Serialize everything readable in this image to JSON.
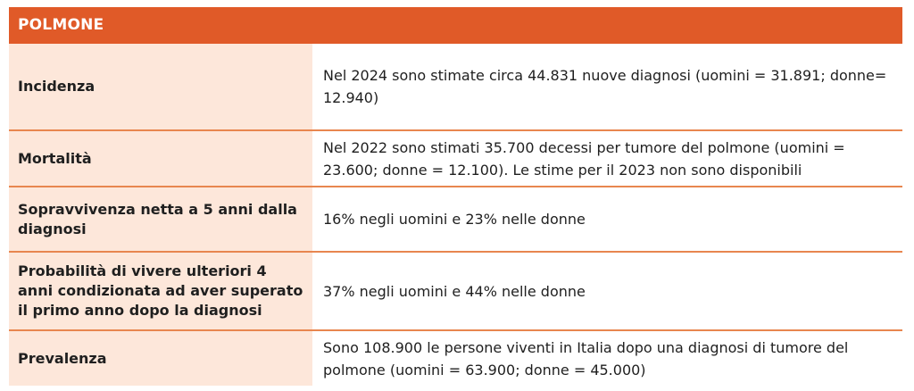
{
  "table": {
    "title": "POLMONE",
    "rows": [
      {
        "label": "Incidenza",
        "value": "Nel 2024 sono stimate circa 44.831 nuove diagnosi (uomini = 31.891; donne= 12.940)"
      },
      {
        "label": "Mortalità",
        "value": "Nel 2022 sono stimati 35.700 decessi per tumore del polmone (uomini = 23.600; donne = 12.100). Le stime per il 2023 non sono disponibili"
      },
      {
        "label": "Sopravvivenza netta a 5 anni dalla diagnosi",
        "value": "16% negli uomini e 23% nelle donne"
      },
      {
        "label": "Probabilità di vivere ulteriori 4 anni condizionata ad aver superato il primo anno dopo la diagnosi",
        "value": "37% negli uomini e 44% nelle donne"
      },
      {
        "label": "Prevalenza",
        "value": "Sono 108.900 le persone viventi in Italia dopo una diagnosi di tumore del polmone (uomini = 63.900; donne = 45.000)"
      }
    ]
  },
  "colors": {
    "header_bg": "#e05a28",
    "label_bg": "#fde7da",
    "divider": "#e8864f"
  }
}
